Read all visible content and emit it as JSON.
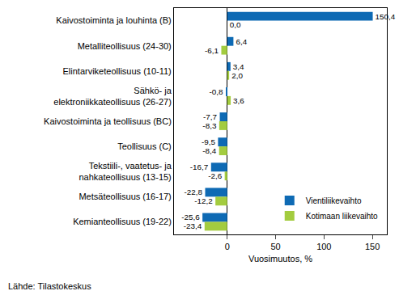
{
  "chart_data": {
    "type": "bar",
    "orientation": "horizontal",
    "categories": [
      "Kaivostoiminta ja louhinta (B)",
      "Metalliteollisuus (24-30)",
      "Elintarviketeollisuus (10-11)",
      "Sähkö- ja\nelektroniikkateollisuus (26-27)",
      "Kaivostoiminta ja teollisuus (BC)",
      "Teollisuus (C)",
      "Tekstiili-, vaatetus- ja\nnahkateollisuus (13-15)",
      "Metsäteollisuus (16-17)",
      "Kemianteollisuus (19-22)"
    ],
    "series": [
      {
        "name": "Vientiliikevaihto",
        "color": "#0e6ab4",
        "values": [
          150.4,
          6.4,
          3.4,
          -0.8,
          -7.7,
          -9.5,
          -16.7,
          -22.8,
          -25.6
        ],
        "value_labels": [
          "150,4",
          "6,4",
          "3,4",
          "-0,8",
          "-7,7",
          "-9,5",
          "-16,7",
          "-22,8",
          "-25,6"
        ]
      },
      {
        "name": "Kotimaan liikevaihto",
        "color": "#a3cc3f",
        "values": [
          0.0,
          -6.1,
          2.0,
          3.6,
          -8.3,
          -8.4,
          -2.6,
          -12.2,
          -23.4
        ],
        "value_labels": [
          "0,0",
          "-6,1",
          "2,0",
          "3,6",
          "-8,3",
          "-8,4",
          "-2,6",
          "-12,2",
          "-23,4"
        ]
      }
    ],
    "x_label": "Vuosimuutos, %",
    "xlim": [
      -55,
      165
    ],
    "xticks": [
      0,
      50,
      100,
      150
    ],
    "grid": false,
    "legend": "lower right",
    "data_labels": true,
    "source": "Lähde: Tilastokeskus"
  }
}
